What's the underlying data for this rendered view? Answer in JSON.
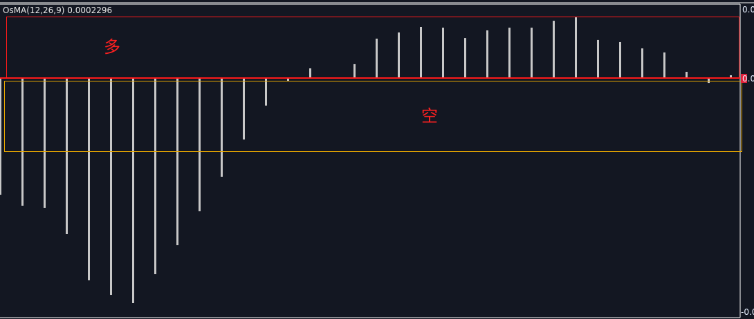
{
  "indicator_label": "OsMA(12,26,9) 0.0002296",
  "annotations": {
    "long": "多",
    "short": "空"
  },
  "colors": {
    "bars": "#c8c8c8",
    "long_box": "#ff1a1a",
    "short_box": "#e8a800",
    "background": "#131722"
  },
  "chart_data": {
    "type": "bar",
    "title": "OsMA(12,26,9)",
    "ytick_labels": [
      "0.0",
      "0.0",
      "-0.0"
    ],
    "values": [
      -0.00773,
      -0.00846,
      -0.0086,
      -0.01035,
      -0.01343,
      -0.0144,
      -0.01495,
      -0.01302,
      -0.01109,
      -0.00883,
      -0.00653,
      -0.00405,
      -0.00179,
      -0.00018,
      0.00069,
      9e-05,
      0.00097,
      0.00267,
      0.00308,
      0.00345,
      0.0034,
      0.00271,
      0.00322,
      0.0034,
      0.0034,
      0.00386,
      0.00409,
      0.00258,
      0.00244,
      0.00202,
      0.00175,
      0.00046,
      -0.00028,
      0.00023
    ],
    "last_value": "0.0002296",
    "grid": false
  }
}
